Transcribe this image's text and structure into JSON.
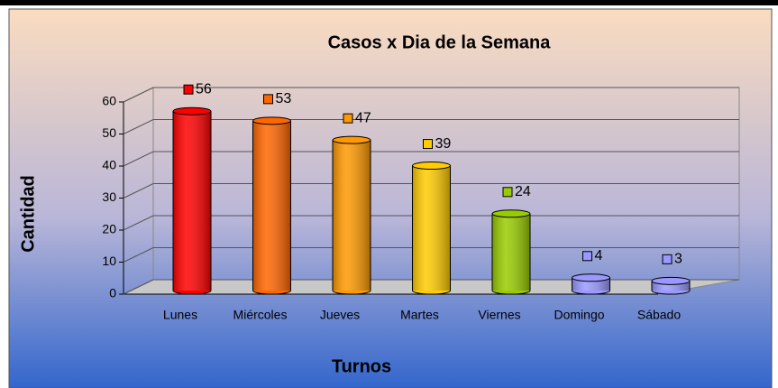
{
  "chart_data": {
    "type": "bar3d",
    "title": "Casos x Dia de la Semana",
    "x_label": "Turnos",
    "y_label": "Cantidad",
    "categories": [
      "Lunes",
      "Miércoles",
      "Jueves",
      "Martes",
      "Viernes",
      "Domingo",
      "Sábado"
    ],
    "values": [
      56,
      53,
      47,
      39,
      24,
      4,
      3
    ],
    "colors": [
      "#ff0000",
      "#ff6600",
      "#ff9900",
      "#ffcc00",
      "#99cc00",
      "#9999ff",
      "#9999ff"
    ],
    "ylim": [
      0,
      60
    ],
    "yticks": [
      0,
      10,
      20,
      30,
      40,
      50,
      60
    ],
    "grid": true
  }
}
